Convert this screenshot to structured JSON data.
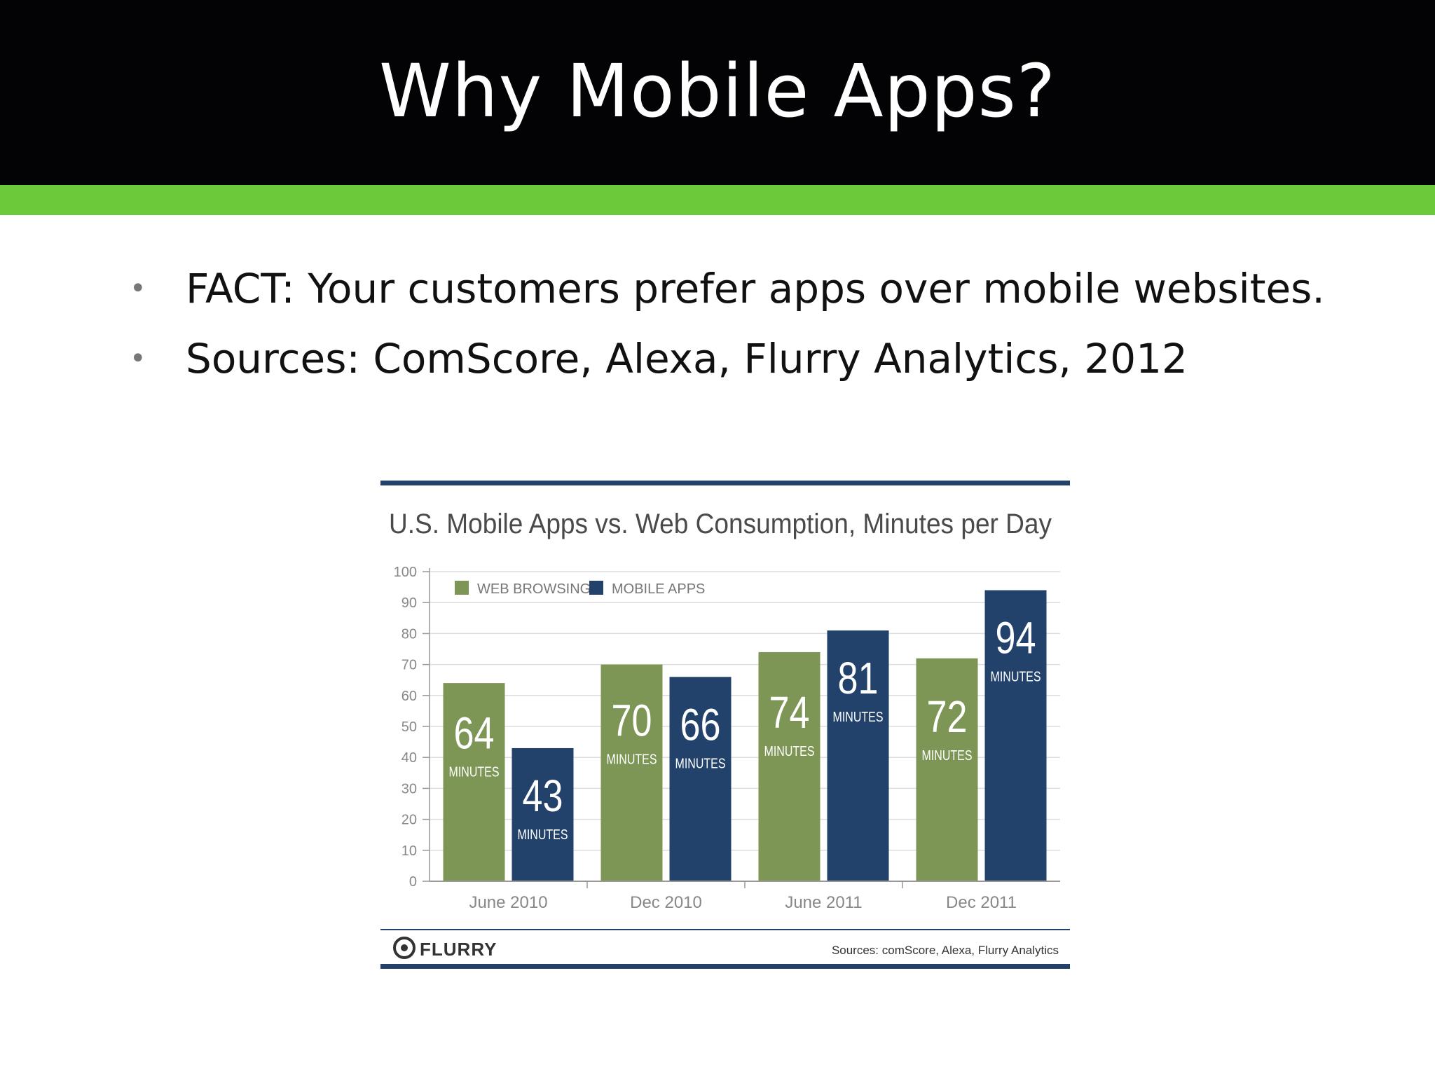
{
  "slide": {
    "title": "Why Mobile Apps?",
    "bullets": [
      "FACT: Your customers prefer apps over mobile websites.",
      "Sources: ComScore, Alexa, Flurry Analytics, 2012"
    ]
  },
  "chart_data": {
    "type": "bar",
    "title": "U.S. Mobile Apps vs. Web Consumption, Minutes per Day",
    "categories": [
      "June 2010",
      "Dec 2010",
      "June 2011",
      "Dec 2011"
    ],
    "series": [
      {
        "name": "WEB BROWSING",
        "values": [
          64,
          70,
          74,
          72
        ],
        "color": "#7d9655"
      },
      {
        "name": "MOBILE APPS",
        "values": [
          43,
          66,
          81,
          94
        ],
        "color": "#22426b"
      }
    ],
    "value_unit_label": "MINUTES",
    "ylim": [
      0,
      100
    ],
    "yticks": [
      0,
      10,
      20,
      30,
      40,
      50,
      60,
      70,
      80,
      90,
      100
    ],
    "grid": true,
    "legend": "top-left",
    "footer": {
      "logo_text": "FLURRY",
      "source": "Sources: comScore, Alexa, Flurry Analytics"
    }
  },
  "colors": {
    "title_bar": "#030306",
    "accent_stripe": "#6cc93a",
    "chart_rule": "#22426b"
  }
}
